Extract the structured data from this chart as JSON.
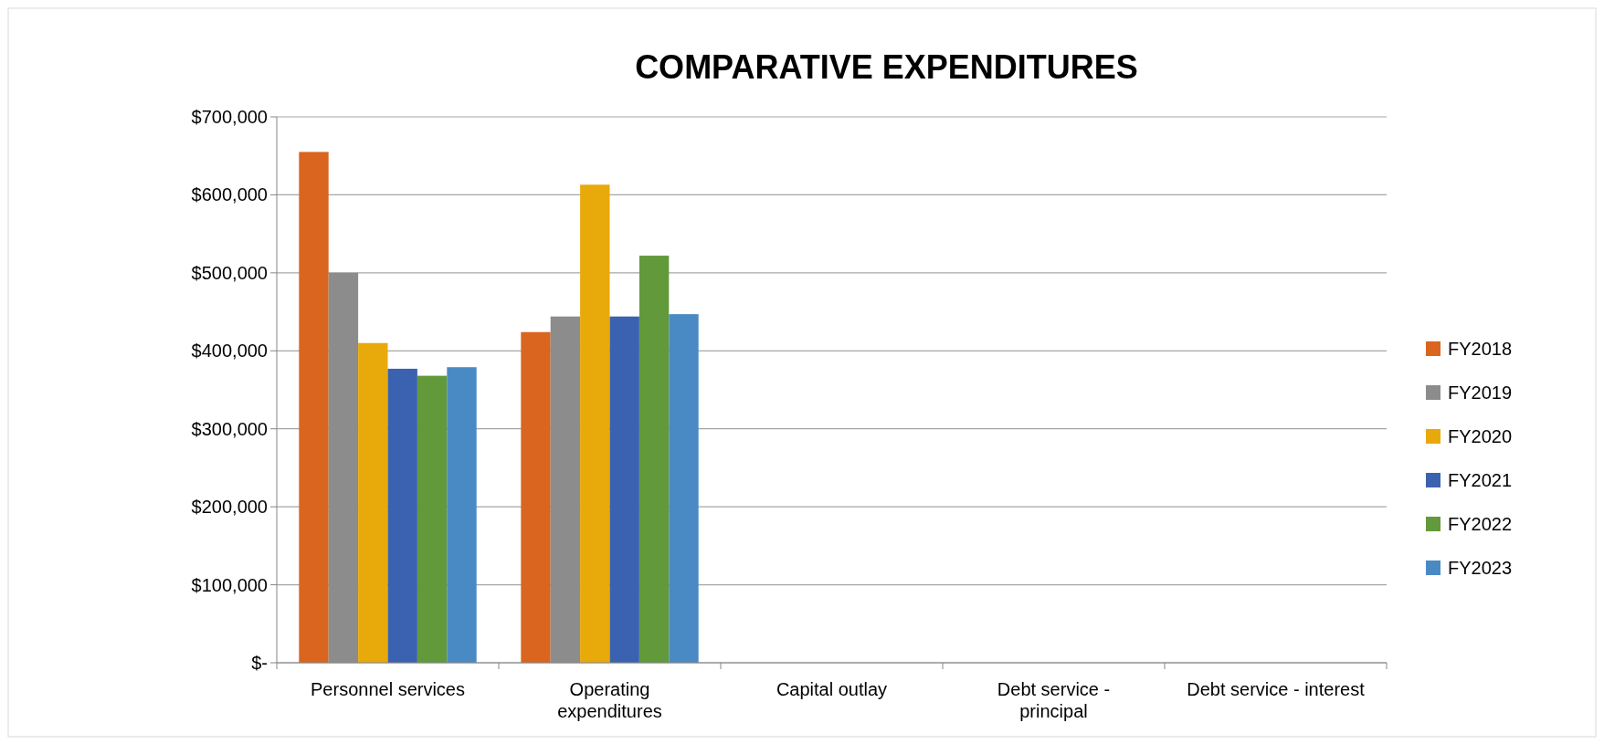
{
  "chart_data": {
    "type": "bar",
    "title": "COMPARATIVE EXPENDITURES",
    "categories": [
      "Personnel services",
      "Operating expenditures",
      "Capital outlay",
      "Debt service - principal",
      "Debt service - interest"
    ],
    "series": [
      {
        "name": "FY2018",
        "color": "#d9651f",
        "values": [
          655000,
          424000,
          null,
          null,
          null
        ]
      },
      {
        "name": "FY2019",
        "color": "#8c8c8c",
        "values": [
          500000,
          444000,
          null,
          null,
          null
        ]
      },
      {
        "name": "FY2020",
        "color": "#e8a90a",
        "values": [
          410000,
          613000,
          null,
          null,
          null
        ]
      },
      {
        "name": "FY2021",
        "color": "#3a62b0",
        "values": [
          377000,
          444000,
          null,
          null,
          null
        ]
      },
      {
        "name": "FY2022",
        "color": "#62993a",
        "values": [
          368000,
          522000,
          null,
          null,
          null
        ]
      },
      {
        "name": "FY2023",
        "color": "#4a8ac4",
        "values": [
          379000,
          447000,
          null,
          null,
          null
        ]
      }
    ],
    "ylim": [
      0,
      700000
    ],
    "yticks": [
      {
        "value": 0,
        "label": "$-"
      },
      {
        "value": 100000,
        "label": "$100,000"
      },
      {
        "value": 200000,
        "label": "$200,000"
      },
      {
        "value": 300000,
        "label": "$300,000"
      },
      {
        "value": 400000,
        "label": "$400,000"
      },
      {
        "value": 500000,
        "label": "$500,000"
      },
      {
        "value": 600000,
        "label": "$600,000"
      },
      {
        "value": 700000,
        "label": "$700,000"
      }
    ],
    "grid": "y",
    "legend": "right"
  }
}
